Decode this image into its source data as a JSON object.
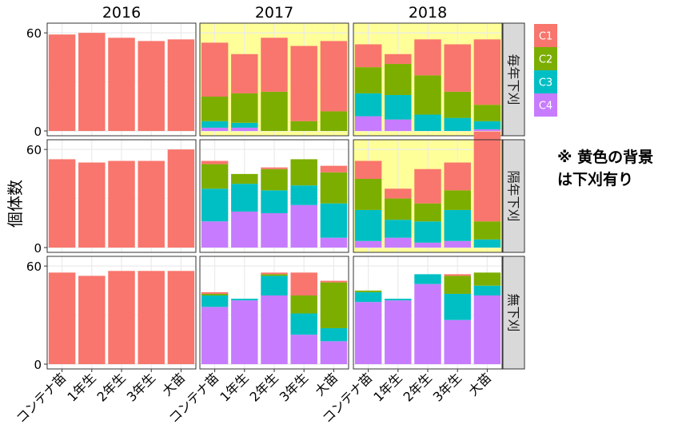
{
  "chart_data": {
    "type": "bar",
    "stacked": true,
    "y_axis_label": "個体数",
    "ylim": [
      0,
      60
    ],
    "y_ticks": [
      0,
      60
    ],
    "grid": true,
    "legend_position": "right",
    "columns": [
      "2016",
      "2017",
      "2018"
    ],
    "rows": [
      "毎年下刈",
      "隔年下刈",
      "無下刈"
    ],
    "categories": [
      "コンテナ苗",
      "1年生",
      "2年生",
      "3年生",
      "大苗"
    ],
    "series_names": [
      "C1",
      "C2",
      "C3",
      "C4"
    ],
    "colors": {
      "C1": "#F8766D",
      "C2": "#7CAE00",
      "C3": "#00BFC4",
      "C4": "#C77CFF"
    },
    "highlight_color": "#FFFF99",
    "highlighted_panels": [
      [
        "毎年下刈",
        "2017"
      ],
      [
        "毎年下刈",
        "2018"
      ],
      [
        "隔年下刈",
        "2018"
      ]
    ],
    "note": [
      "※ 黄色の背景",
      "は下刈有り"
    ],
    "panels": [
      {
        "row": "毎年下刈",
        "col": "2016",
        "stacks": [
          [
            59,
            0,
            0,
            0
          ],
          [
            60,
            0,
            0,
            0
          ],
          [
            57,
            0,
            0,
            0
          ],
          [
            55,
            0,
            0,
            0
          ],
          [
            56,
            0,
            0,
            0
          ]
        ]
      },
      {
        "row": "毎年下刈",
        "col": "2017",
        "stacks": [
          [
            33,
            15,
            4,
            2
          ],
          [
            24,
            18,
            3,
            2
          ],
          [
            33,
            24,
            0,
            0
          ],
          [
            46,
            6,
            0,
            0
          ],
          [
            43,
            12,
            0,
            0
          ]
        ]
      },
      {
        "row": "毎年下刈",
        "col": "2018",
        "stacks": [
          [
            14,
            16,
            14,
            9
          ],
          [
            6,
            19,
            15,
            7
          ],
          [
            22,
            24,
            10,
            0
          ],
          [
            29,
            16,
            8,
            0
          ],
          [
            40,
            10,
            5,
            1
          ]
        ]
      },
      {
        "row": "隔年下刈",
        "col": "2016",
        "stacks": [
          [
            54,
            0,
            0,
            0
          ],
          [
            52,
            0,
            0,
            0
          ],
          [
            53,
            0,
            0,
            0
          ],
          [
            53,
            0,
            0,
            0
          ],
          [
            60,
            0,
            0,
            0
          ]
        ]
      },
      {
        "row": "隔年下刈",
        "col": "2017",
        "stacks": [
          [
            2,
            15,
            20,
            16
          ],
          [
            0,
            6,
            17,
            22
          ],
          [
            1,
            13,
            14,
            21
          ],
          [
            0,
            16,
            12,
            26
          ],
          [
            4,
            19,
            21,
            6
          ]
        ]
      },
      {
        "row": "隔年下刈",
        "col": "2018",
        "stacks": [
          [
            11,
            19,
            19,
            4
          ],
          [
            6,
            13,
            11,
            6
          ],
          [
            21,
            11,
            13,
            3
          ],
          [
            17,
            12,
            19,
            4
          ],
          [
            55,
            11,
            5,
            0
          ]
        ]
      },
      {
        "row": "無下刈",
        "col": "2016",
        "stacks": [
          [
            56,
            0,
            0,
            0
          ],
          [
            54,
            0,
            0,
            0
          ],
          [
            57,
            0,
            0,
            0
          ],
          [
            57,
            0,
            0,
            0
          ],
          [
            57,
            0,
            0,
            0
          ]
        ]
      },
      {
        "row": "無下刈",
        "col": "2017",
        "stacks": [
          [
            1,
            1,
            7,
            35
          ],
          [
            0,
            0,
            1,
            39
          ],
          [
            1,
            1,
            12,
            42
          ],
          [
            14,
            11,
            13,
            18
          ],
          [
            1,
            28,
            8,
            14
          ]
        ]
      },
      {
        "row": "無下刈",
        "col": "2018",
        "stacks": [
          [
            0,
            1,
            6,
            38
          ],
          [
            0,
            0,
            1,
            39
          ],
          [
            0,
            0,
            6,
            49
          ],
          [
            1,
            11,
            16,
            27
          ],
          [
            0,
            8,
            6,
            42
          ]
        ]
      }
    ]
  }
}
